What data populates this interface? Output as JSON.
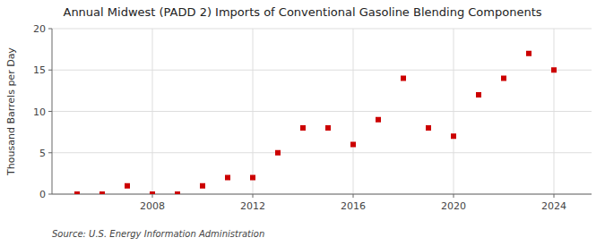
{
  "chart_data": {
    "type": "scatter",
    "title": "Annual Midwest (PADD 2) Imports of Conventional Gasoline Blending Components",
    "ylabel": "Thousand Barrels per Day",
    "source": "Source: U.S. Energy Information Administration",
    "x": [
      2005,
      2006,
      2007,
      2008,
      2009,
      2010,
      2011,
      2012,
      2013,
      2014,
      2015,
      2016,
      2017,
      2018,
      2019,
      2020,
      2021,
      2022,
      2023,
      2024
    ],
    "values": [
      0.0,
      0.0,
      1.0,
      0.0,
      0.0,
      1.0,
      2.0,
      2.0,
      5.0,
      8.0,
      8.0,
      6.0,
      9.0,
      14.0,
      8.0,
      7.0,
      12.0,
      14.0,
      17.0,
      15.0
    ],
    "color": "#cc0000",
    "marker": "square",
    "xlim": [
      2004.0,
      2025.5
    ],
    "xticks": [
      2008,
      2012,
      2016,
      2020,
      2024
    ],
    "ylim": [
      0,
      20
    ],
    "yticks": [
      0,
      5,
      10,
      15,
      20
    ],
    "grid": true
  }
}
